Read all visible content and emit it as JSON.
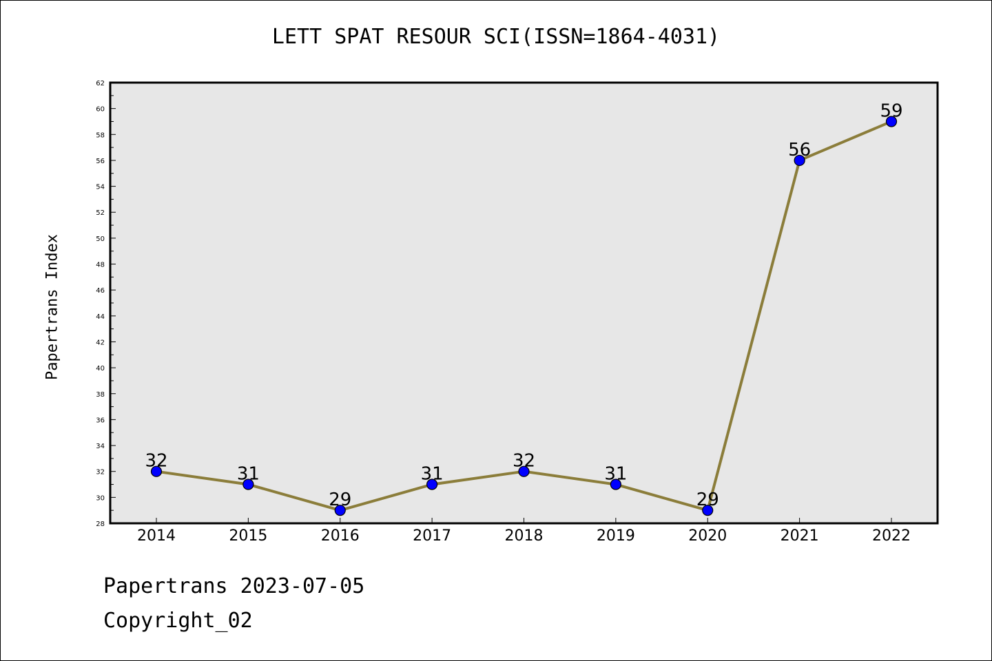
{
  "chart_data": {
    "type": "line",
    "title": "LETT SPAT RESOUR SCI(ISSN=1864-4031)",
    "xlabel": "",
    "ylabel": "Papertrans Index",
    "categories": [
      "2014",
      "2015",
      "2016",
      "2017",
      "2018",
      "2019",
      "2020",
      "2021",
      "2022"
    ],
    "series": [
      {
        "values": [
          32,
          31,
          29,
          31,
          32,
          31,
          29,
          56,
          59
        ]
      }
    ],
    "ylim": [
      28,
      62
    ],
    "yticks": [
      28,
      30,
      32,
      34,
      36,
      38,
      40,
      42,
      44,
      46,
      48,
      50,
      52,
      54,
      56,
      58,
      60,
      62
    ],
    "grid": false,
    "legend": "none",
    "data_labels": true,
    "colors": {
      "plot_background": "#e7e7e7",
      "line": "#8b7d3a",
      "marker": "#0000ff",
      "marker_edge": "#000000"
    }
  },
  "footer": {
    "date_line": "Papertrans 2023-07-05",
    "copyright_line": "Copyright_02"
  }
}
